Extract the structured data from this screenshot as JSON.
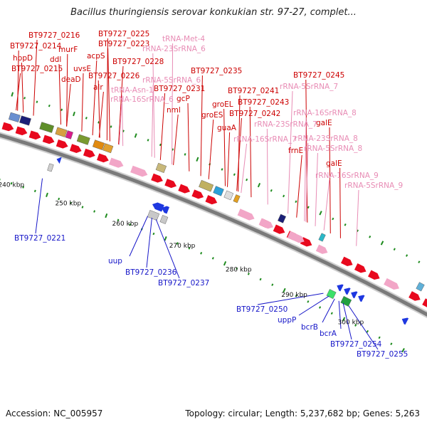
{
  "title": "Bacillus thuringiensis serovar konkukian str. 97-27, complet...",
  "footer": {
    "accession": "Accession: NC_005957",
    "topology": "Topology: circular; Length: 5,237,682 bp; Genes: 5,263"
  },
  "colors": {
    "cds_red": "#e8091e",
    "rna_pink": "#f2a6c7",
    "label_red": "#cc0000",
    "label_pink": "#e88cb5",
    "label_blue": "#1515c8",
    "tick_green": "#1e8b1e",
    "backbone": "#7a7a7a"
  },
  "scale": {
    "unit": "kbp",
    "labels": [
      "240 kbp",
      "250 kbp",
      "260 kbp",
      "270 kbp",
      "280 kbp",
      "290 kbp",
      "300 kbp"
    ]
  },
  "labels_top": [
    {
      "text": "BT9727_0216",
      "color": "red"
    },
    {
      "text": "BT9727_0214",
      "color": "red"
    },
    {
      "text": "hppD",
      "color": "red"
    },
    {
      "text": "BT9727_0215",
      "color": "red"
    },
    {
      "text": "murF",
      "color": "red"
    },
    {
      "text": "ddl",
      "color": "red"
    },
    {
      "text": "deaD",
      "color": "red"
    },
    {
      "text": "BT9727_0225",
      "color": "red"
    },
    {
      "text": "BT9727_0223",
      "color": "red"
    },
    {
      "text": "acpS",
      "color": "red"
    },
    {
      "text": "uvsE",
      "color": "red"
    },
    {
      "text": "BT9727_0226",
      "color": "red"
    },
    {
      "text": "alr",
      "color": "red"
    },
    {
      "text": "tRNA-Met-4",
      "color": "pink"
    },
    {
      "text": "rRNA-23SrRNA_6",
      "color": "pink"
    },
    {
      "text": "BT9727_0228",
      "color": "red"
    },
    {
      "text": "rRNA-5SrRNA_6",
      "color": "pink"
    },
    {
      "text": "tRNA-Asn-1",
      "color": "pink"
    },
    {
      "text": "BT9727_0231",
      "color": "red"
    },
    {
      "text": "rRNA-16SrRNA_6",
      "color": "pink"
    },
    {
      "text": "gcP",
      "color": "red"
    },
    {
      "text": "nml",
      "color": "red"
    },
    {
      "text": "BT9727_0235",
      "color": "red"
    },
    {
      "text": "groEL",
      "color": "red"
    },
    {
      "text": "groES",
      "color": "red"
    },
    {
      "text": "BT9727_0241",
      "color": "red"
    },
    {
      "text": "BT9727_0243",
      "color": "red"
    },
    {
      "text": "BT9727_0242",
      "color": "red"
    },
    {
      "text": "guaA",
      "color": "red"
    },
    {
      "text": "BT9727_0245",
      "color": "red"
    },
    {
      "text": "rRNA-5SrRNA_7",
      "color": "pink"
    },
    {
      "text": "rRNA-16SrRNA_8",
      "color": "pink"
    },
    {
      "text": "rRNA-23SrRNA_7",
      "color": "pink"
    },
    {
      "text": "rRNA-16SrRNA_7",
      "color": "pink"
    },
    {
      "text": "rRNA-23SrRNA_8",
      "color": "pink"
    },
    {
      "text": "galE",
      "color": "red"
    },
    {
      "text": "frnE",
      "color": "red"
    },
    {
      "text": "rRNA-5SrRNA_8",
      "color": "pink"
    },
    {
      "text": "galE",
      "color": "red"
    },
    {
      "text": "rRNA-16SrRNA_9",
      "color": "pink"
    },
    {
      "text": "rRNA-5SrRNA_9",
      "color": "pink"
    }
  ],
  "labels_bottom": [
    {
      "text": "BT9727_0221"
    },
    {
      "text": "uup"
    },
    {
      "text": "BT9727_0236"
    },
    {
      "text": "BT9727_0237"
    },
    {
      "text": "BT9727_0250"
    },
    {
      "text": "uppP"
    },
    {
      "text": "bcrB"
    },
    {
      "text": "bcrA"
    },
    {
      "text": "BT9727_0254"
    },
    {
      "text": "BT9727_0255"
    }
  ]
}
